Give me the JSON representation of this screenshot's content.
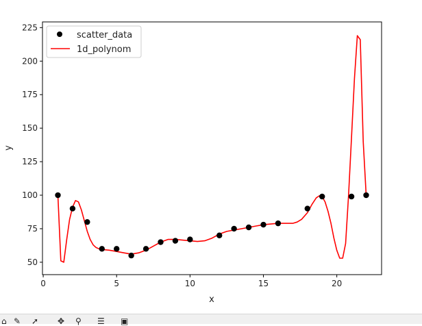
{
  "chart_data": {
    "type": "scatter",
    "xlabel": "x",
    "ylabel": "y",
    "xlim": [
      -0.05,
      23.05
    ],
    "ylim": [
      40.75,
      229.25
    ],
    "xticks": [
      0,
      5,
      10,
      15,
      20
    ],
    "yticks": [
      50,
      75,
      100,
      125,
      150,
      175,
      200,
      225
    ],
    "grid": false,
    "legend_position": "upper-left",
    "series": [
      {
        "name": "scatter_data",
        "kind": "scatter",
        "color": "#000000",
        "x": [
          1,
          2,
          3,
          4,
          5,
          6,
          7,
          8,
          9,
          10,
          12,
          13,
          14,
          15,
          16,
          18,
          19,
          21,
          22
        ],
        "y": [
          100,
          90,
          80,
          60,
          60,
          55,
          60,
          65,
          66,
          67,
          70,
          75,
          76,
          78,
          79,
          90,
          99,
          99,
          100
        ]
      },
      {
        "name": "1d_polynom",
        "kind": "line",
        "color": "#ff0000",
        "x": [
          1,
          1.2,
          1.4,
          1.6,
          1.8,
          2.0,
          2.2,
          2.4,
          2.6,
          2.8,
          3.0,
          3.2,
          3.4,
          3.6,
          3.8,
          4.0,
          4.5,
          5.0,
          5.5,
          6.0,
          6.5,
          7.0,
          7.5,
          8.0,
          8.5,
          9.0,
          9.5,
          10.0,
          10.5,
          11.0,
          11.5,
          12.0,
          12.5,
          13.0,
          13.5,
          14.0,
          14.5,
          15.0,
          15.5,
          16.0,
          16.5,
          17.0,
          17.3,
          17.6,
          18.0,
          18.3,
          18.6,
          18.8,
          19.0,
          19.2,
          19.4,
          19.6,
          19.8,
          20.0,
          20.2,
          20.4,
          20.6,
          20.8,
          21.0,
          21.2,
          21.4,
          21.6,
          21.8,
          22.0
        ],
        "y": [
          100,
          51,
          50,
          67,
          82,
          91,
          96,
          95,
          89,
          81,
          73,
          67,
          63,
          61,
          60,
          59.5,
          59,
          58,
          57,
          56,
          57,
          59,
          62,
          65,
          67,
          67,
          66.5,
          66,
          65.5,
          66,
          68,
          71,
          73,
          74,
          75,
          76,
          77,
          78,
          78.5,
          79,
          79,
          79,
          80,
          82,
          87,
          93,
          98,
          99.5,
          99,
          95,
          88,
          79,
          68,
          59,
          53,
          53,
          64,
          100,
          143,
          187,
          219,
          216,
          140,
          100
        ]
      }
    ]
  },
  "toolbar": {
    "icons": [
      "home-icon",
      "back-icon",
      "forward-icon",
      "pan-icon",
      "zoom-icon",
      "configure-icon",
      "save-icon"
    ]
  }
}
